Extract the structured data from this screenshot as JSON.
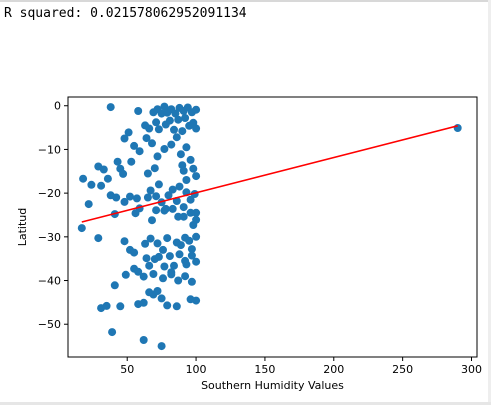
{
  "output": {
    "r_squared_text": "R squared: 0.021578062952091134"
  },
  "chart_data": {
    "type": "scatter",
    "title": "",
    "xlabel": "Southern Humidity Values",
    "ylabel": "Latitud",
    "xlim": [
      7,
      304
    ],
    "ylim": [
      -57.5,
      2
    ],
    "xticks": [
      50,
      100,
      150,
      200,
      250,
      300
    ],
    "yticks": [
      0,
      -10,
      -20,
      -30,
      -40,
      -50
    ],
    "grid": false,
    "colors": {
      "points": "#1f77b4",
      "regression": "#ff0000"
    },
    "series": [
      {
        "points": [
          [
            38,
            -0.3
          ],
          [
            58,
            -1.2
          ],
          [
            69,
            -1.5
          ],
          [
            72,
            -0.8
          ],
          [
            75,
            -1.8
          ],
          [
            77,
            -0.2
          ],
          [
            79,
            -1.6
          ],
          [
            82,
            -0.8
          ],
          [
            85,
            -1.8
          ],
          [
            88,
            -0.5
          ],
          [
            91,
            -1.2
          ],
          [
            94,
            -0.4
          ],
          [
            97,
            -1.5
          ],
          [
            100,
            -0.9
          ],
          [
            63,
            -4.5
          ],
          [
            66,
            -5.2
          ],
          [
            71,
            -3.8
          ],
          [
            73,
            -5.4
          ],
          [
            78,
            -4.3
          ],
          [
            81,
            -3.4
          ],
          [
            84,
            -5.5
          ],
          [
            87,
            -3.2
          ],
          [
            90,
            -5.8
          ],
          [
            92,
            -2.8
          ],
          [
            95,
            -4.6
          ],
          [
            98,
            -3.9
          ],
          [
            100,
            -5.2
          ],
          [
            51,
            -6.1
          ],
          [
            48,
            -7.5
          ],
          [
            55,
            -9.2
          ],
          [
            59,
            -10.4
          ],
          [
            64,
            -7.4
          ],
          [
            68,
            -8.6
          ],
          [
            72,
            -11.6
          ],
          [
            77,
            -9.9
          ],
          [
            82,
            -8.9
          ],
          [
            86,
            -7.2
          ],
          [
            89,
            -11.1
          ],
          [
            93,
            -9.5
          ],
          [
            96,
            -12.4
          ],
          [
            90,
            -13.6
          ],
          [
            53,
            -12.8
          ],
          [
            43,
            -12.8
          ],
          [
            29,
            -13.9
          ],
          [
            33,
            -14.6
          ],
          [
            36,
            -16.7
          ],
          [
            45,
            -14.4
          ],
          [
            47,
            -15.6
          ],
          [
            65,
            -15.5
          ],
          [
            70,
            -14.3
          ],
          [
            91,
            -14.9
          ],
          [
            93,
            -17.0
          ],
          [
            98,
            -14.4
          ],
          [
            100,
            -16.1
          ],
          [
            18,
            -16.7
          ],
          [
            24,
            -18.1
          ],
          [
            31,
            -18.3
          ],
          [
            38,
            -20.5
          ],
          [
            42,
            -21.0
          ],
          [
            48,
            -22.0
          ],
          [
            52,
            -20.8
          ],
          [
            57,
            -21.2
          ],
          [
            59,
            -23.5
          ],
          [
            65,
            -21.0
          ],
          [
            67,
            -19.4
          ],
          [
            71,
            -20.7
          ],
          [
            73,
            -18.0
          ],
          [
            75,
            -22.1
          ],
          [
            77,
            -24.0
          ],
          [
            80,
            -20.5
          ],
          [
            83,
            -19.2
          ],
          [
            86,
            -21.8
          ],
          [
            88,
            -18.5
          ],
          [
            91,
            -23.2
          ],
          [
            93,
            -19.8
          ],
          [
            96,
            -21.5
          ],
          [
            99,
            -20.2
          ],
          [
            100,
            -24.5
          ],
          [
            22,
            -22.5
          ],
          [
            41,
            -24.8
          ],
          [
            56,
            -24.6
          ],
          [
            68,
            -26.2
          ],
          [
            71,
            -23.9
          ],
          [
            78,
            -23.6
          ],
          [
            83,
            -23.6
          ],
          [
            87,
            -25.4
          ],
          [
            91,
            -25.4
          ],
          [
            96,
            -24.5
          ],
          [
            98,
            -27.3
          ],
          [
            100,
            -26.1
          ],
          [
            17,
            -28.0
          ],
          [
            29,
            -30.3
          ],
          [
            48,
            -31.0
          ],
          [
            52,
            -33.0
          ],
          [
            55,
            -33.6
          ],
          [
            63,
            -31.6
          ],
          [
            67,
            -30.4
          ],
          [
            72,
            -31.5
          ],
          [
            76,
            -33.0
          ],
          [
            79,
            -30.3
          ],
          [
            86,
            -31.3
          ],
          [
            89,
            -31.9
          ],
          [
            92,
            -30.2
          ],
          [
            95,
            -30.9
          ],
          [
            97,
            -32.8
          ],
          [
            100,
            -30.0
          ],
          [
            70,
            -35.1
          ],
          [
            73,
            -34.6
          ],
          [
            66,
            -36.6
          ],
          [
            64,
            -34.9
          ],
          [
            77,
            -36.8
          ],
          [
            81,
            -34.4
          ],
          [
            84,
            -36.6
          ],
          [
            88,
            -34.0
          ],
          [
            93,
            -36.3
          ],
          [
            97,
            -34.3
          ],
          [
            100,
            -35.7
          ],
          [
            49,
            -38.7
          ],
          [
            55,
            -37.3
          ],
          [
            58,
            -38.0
          ],
          [
            62,
            -39.1
          ],
          [
            69,
            -38.5
          ],
          [
            76,
            -39.5
          ],
          [
            82,
            -38.1
          ],
          [
            87,
            -40.0
          ],
          [
            92,
            -39.0
          ],
          [
            97,
            -40.3
          ],
          [
            41,
            -41.1
          ],
          [
            66,
            -42.7
          ],
          [
            69,
            -43.2
          ],
          [
            72,
            -42.4
          ],
          [
            75,
            -44.1
          ],
          [
            100,
            -44.6
          ],
          [
            31,
            -46.3
          ],
          [
            35,
            -45.8
          ],
          [
            45,
            -45.9
          ],
          [
            58,
            -45.4
          ],
          [
            62,
            -45.1
          ],
          [
            79,
            -45.7
          ],
          [
            86,
            -45.9
          ],
          [
            96,
            -44.3
          ],
          [
            39,
            -51.8
          ],
          [
            62,
            -53.6
          ],
          [
            75,
            -55.0
          ],
          [
            82,
            -38.6
          ],
          [
            92,
            -35.5
          ],
          [
            290,
            -5.1
          ]
        ]
      }
    ],
    "regression": {
      "x": [
        17,
        290
      ],
      "y": [
        -26.6,
        -4.6
      ]
    }
  }
}
